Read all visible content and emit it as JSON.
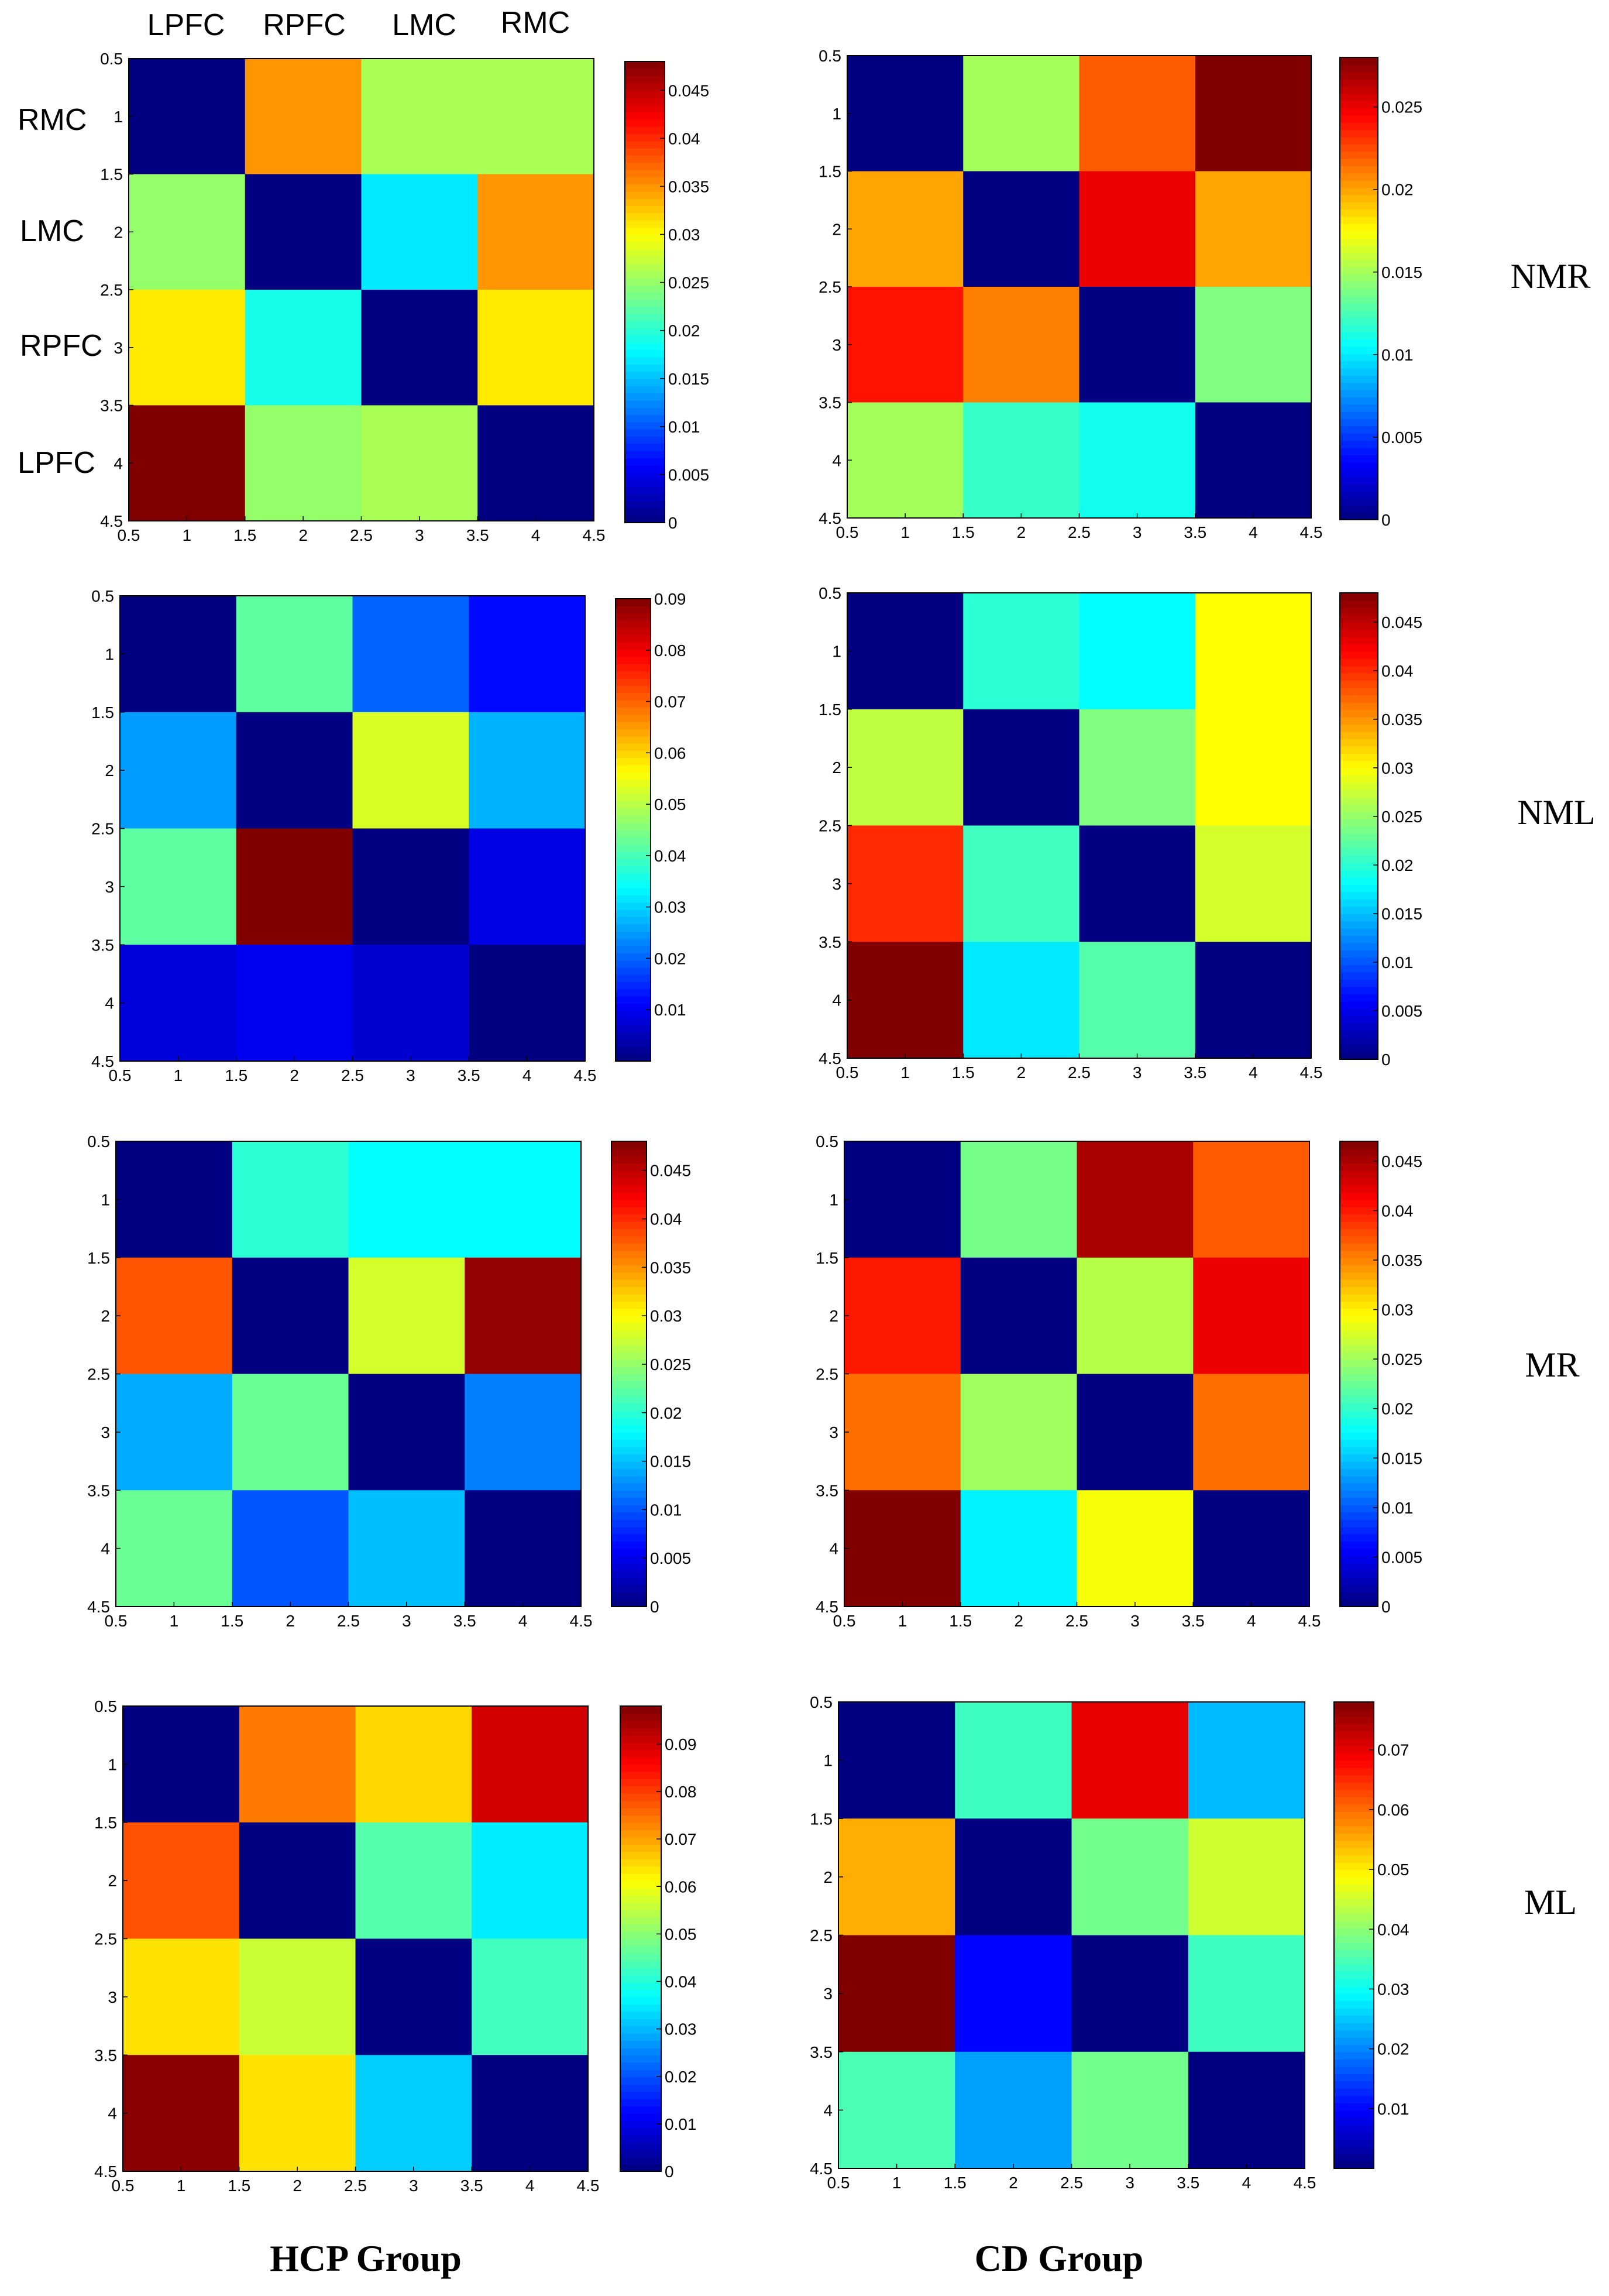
{
  "colormap": "jet",
  "column_labels": [
    "LPFC",
    "RPFC",
    "LMC",
    "RMC"
  ],
  "row_labels": [
    "RMC",
    "LMC",
    "RPFC",
    "LPFC"
  ],
  "condition_labels": [
    "NMR",
    "NML",
    "MR",
    "ML"
  ],
  "group_labels": [
    "HCP Group",
    "CD Group"
  ],
  "chart_data": [
    {
      "type": "heatmap",
      "group": "HCP Group",
      "condition": "NMR",
      "x_ticks": [
        "0.5",
        "1",
        "1.5",
        "2",
        "2.5",
        "3",
        "3.5",
        "4",
        "4.5"
      ],
      "y_ticks": [
        "0.5",
        "1",
        "1.5",
        "2",
        "2.5",
        "3",
        "3.5",
        "4",
        "4.5"
      ],
      "clim": [
        0,
        0.048
      ],
      "colorbar_ticks": [
        "0",
        "0.005",
        "0.01",
        "0.015",
        "0.02",
        "0.025",
        "0.03",
        "0.035",
        "0.04",
        "0.045"
      ],
      "values": [
        [
          0,
          0.035,
          0.026,
          0.026
        ],
        [
          0.025,
          0,
          0.017,
          0.035
        ],
        [
          0.031,
          0.019,
          0,
          0.031
        ],
        [
          0.048,
          0.025,
          0.026,
          0
        ]
      ]
    },
    {
      "type": "heatmap",
      "group": "CD Group",
      "condition": "NMR",
      "x_ticks": [
        "0.5",
        "1",
        "1.5",
        "2",
        "2.5",
        "3",
        "3.5",
        "4",
        "4.5"
      ],
      "y_ticks": [
        "0.5",
        "1",
        "1.5",
        "2",
        "2.5",
        "3",
        "3.5",
        "4",
        "4.5"
      ],
      "clim": [
        0,
        0.028
      ],
      "colorbar_ticks": [
        "0",
        "0.005",
        "0.01",
        "0.015",
        "0.02",
        "0.025"
      ],
      "values": [
        [
          0,
          0.015,
          0.022,
          0.028
        ],
        [
          0.02,
          0,
          0.025,
          0.02
        ],
        [
          0.024,
          0.021,
          0,
          0.014
        ],
        [
          0.015,
          0.012,
          0.011,
          0
        ]
      ]
    },
    {
      "type": "heatmap",
      "group": "HCP Group",
      "condition": "NML",
      "x_ticks": [
        "0.5",
        "1",
        "1.5",
        "2",
        "2.5",
        "3",
        "3.5",
        "4",
        "4.5"
      ],
      "y_ticks": [
        "0.5",
        "1",
        "1.5",
        "2",
        "2.5",
        "3",
        "3.5",
        "4",
        "4.5"
      ],
      "clim": [
        0,
        0.09
      ],
      "colorbar_ticks": [
        "0.01",
        "0.02",
        "0.03",
        "0.04",
        "0.05",
        "0.06",
        "0.07",
        "0.08",
        "0.09"
      ],
      "values": [
        [
          0,
          0.042,
          0.02,
          0.012
        ],
        [
          0.025,
          0,
          0.053,
          0.027
        ],
        [
          0.042,
          0.09,
          0,
          0.009
        ],
        [
          0.008,
          0.01,
          0.007,
          0
        ]
      ]
    },
    {
      "type": "heatmap",
      "group": "CD Group",
      "condition": "NML",
      "x_ticks": [
        "0.5",
        "1",
        "1.5",
        "2",
        "2.5",
        "3",
        "3.5",
        "4",
        "4.5"
      ],
      "y_ticks": [
        "0.5",
        "1",
        "1.5",
        "2",
        "2.5",
        "3",
        "3.5",
        "4",
        "4.5"
      ],
      "clim": [
        0,
        0.048
      ],
      "colorbar_ticks": [
        "0",
        "0.005",
        "0.01",
        "0.015",
        "0.02",
        "0.025",
        "0.03",
        "0.035",
        "0.04",
        "0.045"
      ],
      "values": [
        [
          0,
          0.02,
          0.018,
          0.03
        ],
        [
          0.027,
          0,
          0.024,
          0.03
        ],
        [
          0.04,
          0.021,
          0,
          0.028
        ],
        [
          0.048,
          0.017,
          0.022,
          0
        ]
      ]
    },
    {
      "type": "heatmap",
      "group": "HCP Group",
      "condition": "MR",
      "x_ticks": [
        "0.5",
        "1",
        "1.5",
        "2",
        "2.5",
        "3",
        "3.5",
        "4",
        "4.5"
      ],
      "y_ticks": [
        "0.5",
        "1",
        "1.5",
        "2",
        "2.5",
        "3",
        "3.5",
        "4",
        "4.5"
      ],
      "clim": [
        0,
        0.048
      ],
      "colorbar_ticks": [
        "0",
        "0.005",
        "0.01",
        "0.015",
        "0.02",
        "0.025",
        "0.03",
        "0.035",
        "0.04",
        "0.045"
      ],
      "values": [
        [
          0,
          0.02,
          0.018,
          0.018
        ],
        [
          0.038,
          0,
          0.028,
          0.047
        ],
        [
          0.014,
          0.023,
          0,
          0.012
        ],
        [
          0.023,
          0.01,
          0.015,
          0
        ]
      ]
    },
    {
      "type": "heatmap",
      "group": "CD Group",
      "condition": "MR",
      "x_ticks": [
        "0.5",
        "1",
        "1.5",
        "2",
        "2.5",
        "3",
        "3.5",
        "4",
        "4.5"
      ],
      "y_ticks": [
        "0.5",
        "1",
        "1.5",
        "2",
        "2.5",
        "3",
        "3.5",
        "4",
        "4.5"
      ],
      "clim": [
        0,
        0.047
      ],
      "colorbar_ticks": [
        "0",
        "0.005",
        "0.01",
        "0.015",
        "0.02",
        "0.025",
        "0.03",
        "0.035",
        "0.04",
        "0.045"
      ],
      "values": [
        [
          0,
          0.023,
          0.045,
          0.037
        ],
        [
          0.04,
          0,
          0.026,
          0.042
        ],
        [
          0.036,
          0.025,
          0,
          0.036
        ],
        [
          0.047,
          0.017,
          0.029,
          0
        ]
      ]
    },
    {
      "type": "heatmap",
      "group": "HCP Group",
      "condition": "ML",
      "x_ticks": [
        "0.5",
        "1",
        "1.5",
        "2",
        "2.5",
        "3",
        "3.5",
        "4",
        "4.5"
      ],
      "y_ticks": [
        "0.5",
        "1",
        "1.5",
        "2",
        "2.5",
        "3",
        "3.5",
        "4",
        "4.5"
      ],
      "clim": [
        0,
        0.098
      ],
      "colorbar_ticks": [
        "0",
        "0.01",
        "0.02",
        "0.03",
        "0.04",
        "0.05",
        "0.06",
        "0.07",
        "0.08",
        "0.09"
      ],
      "values": [
        [
          0,
          0.074,
          0.065,
          0.09
        ],
        [
          0.078,
          0,
          0.045,
          0.035
        ],
        [
          0.064,
          0.056,
          0,
          0.043
        ],
        [
          0.097,
          0.064,
          0.032,
          0
        ]
      ]
    },
    {
      "type": "heatmap",
      "group": "CD Group",
      "condition": "ML",
      "x_ticks": [
        "0.5",
        "1",
        "1.5",
        "2",
        "2.5",
        "3",
        "3.5",
        "4",
        "4.5"
      ],
      "y_ticks": [
        "0.5",
        "1",
        "1.5",
        "2",
        "2.5",
        "3",
        "3.5",
        "4",
        "4.5"
      ],
      "clim": [
        0,
        0.078
      ],
      "colorbar_ticks": [
        "0.01",
        "0.02",
        "0.03",
        "0.04",
        "0.05",
        "0.06",
        "0.07"
      ],
      "values": [
        [
          0,
          0.034,
          0.07,
          0.024
        ],
        [
          0.055,
          0,
          0.038,
          0.045
        ],
        [
          0.078,
          0.01,
          0,
          0.034
        ],
        [
          0.035,
          0.022,
          0.038,
          0
        ]
      ]
    }
  ]
}
